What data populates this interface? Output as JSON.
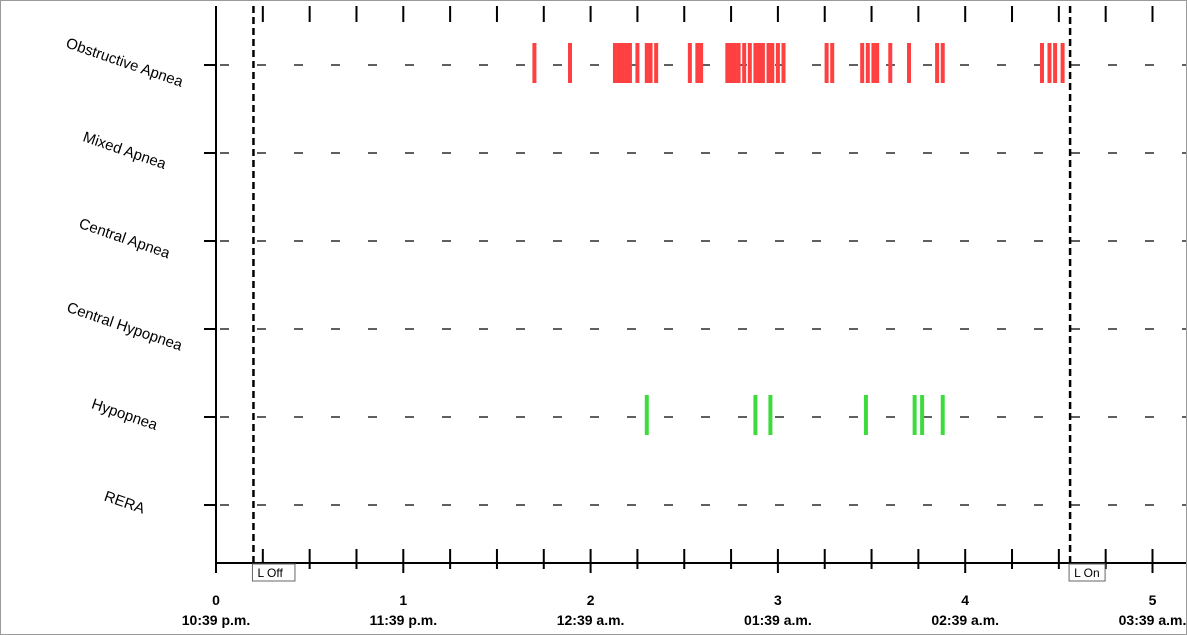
{
  "chart_data": {
    "type": "event_timeline",
    "title": "",
    "rows": [
      {
        "label": "Obstructive Apnea",
        "color": "#ff4040",
        "events": [
          1.7,
          1.89,
          2.13,
          2.15,
          2.17,
          2.19,
          2.21,
          2.25,
          2.3,
          2.32,
          2.35,
          2.53,
          2.57,
          2.59,
          2.73,
          2.75,
          2.77,
          2.79,
          2.82,
          2.85,
          2.88,
          2.9,
          2.92,
          2.95,
          2.97,
          3.0,
          3.03,
          3.26,
          3.29,
          3.45,
          3.48,
          3.51,
          3.53,
          3.6,
          3.7,
          3.85,
          3.88,
          4.41,
          4.45,
          4.48,
          4.52
        ]
      },
      {
        "label": "Mixed Apnea",
        "color": "#ff4040",
        "events": []
      },
      {
        "label": "Central Apnea",
        "color": "#ff4040",
        "events": []
      },
      {
        "label": "Central Hypopnea",
        "color": "#3cdc3c",
        "events": []
      },
      {
        "label": "Hypopnea",
        "color": "#3cdc3c",
        "events": [
          2.3,
          2.88,
          2.96,
          3.47,
          3.73,
          3.77,
          3.88
        ]
      },
      {
        "label": "RERA",
        "color": "#3cdc3c",
        "events": []
      }
    ],
    "x_axis": {
      "range": [
        0,
        5.2
      ],
      "ticks": [
        {
          "value": 0,
          "label": "0",
          "time": "10:39 p.m."
        },
        {
          "value": 1,
          "label": "1",
          "time": "11:39 p.m."
        },
        {
          "value": 2,
          "label": "2",
          "time": "12:39 a.m."
        },
        {
          "value": 3,
          "label": "3",
          "time": "01:39 a.m."
        },
        {
          "value": 4,
          "label": "4",
          "time": "02:39 a.m."
        },
        {
          "value": 5,
          "label": "5",
          "time": "03:39 a.m."
        }
      ]
    },
    "markers": [
      {
        "label": "L Off",
        "value": 0.2
      },
      {
        "label": "L On",
        "value": 4.56
      }
    ],
    "grid": true,
    "event_bar_color_red": "#ff4040",
    "event_bar_color_green": "#3cdc3c"
  }
}
